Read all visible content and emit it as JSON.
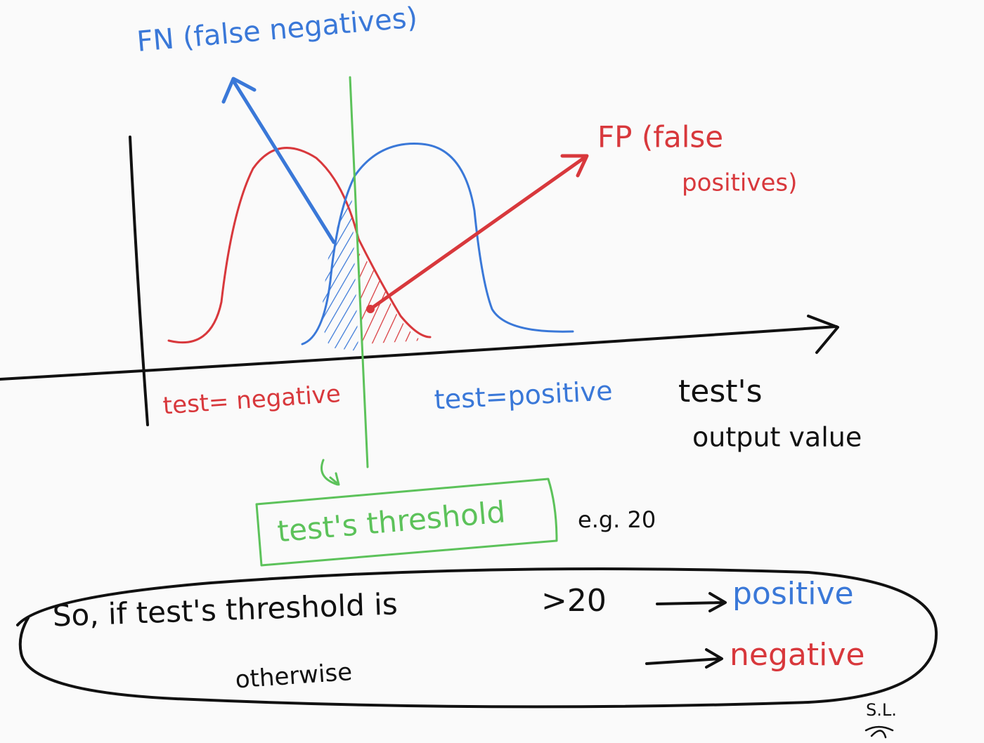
{
  "labels": {
    "fn": "FN (false negatives)",
    "fp_line1": "FP (false",
    "fp_line2": "positives)",
    "test_negative": "test= negative",
    "test_positive": "test=positive",
    "axis_line1": "test's",
    "axis_line2": "output value",
    "threshold": "test's threshold",
    "example": "e.g. 20"
  },
  "rule": {
    "condition": "So, if test's threshold is",
    "comparison": ">20",
    "positive": "positive",
    "otherwise": "otherwise",
    "negative": "negative"
  },
  "signature": "S.L."
}
